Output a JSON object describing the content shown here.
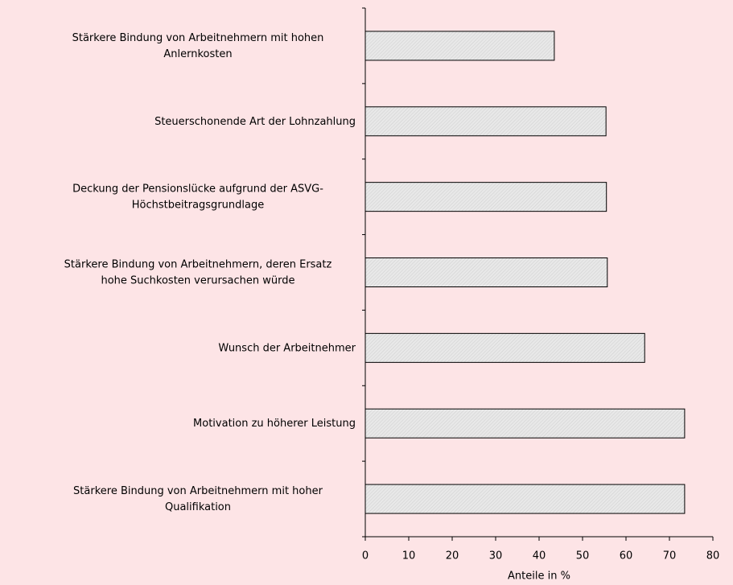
{
  "chart_data": {
    "type": "barh",
    "categories": [
      "Stärkere Bindung von Arbeitnehmern mit hohen\nAnlernkosten",
      "Steuerschonende Art der Lohnzahlung",
      "Deckung der Pensionslücke aufgrund der ASVG-\nHöchstbeitragsgrundlage",
      "Stärkere Bindung von Arbeitnehmern, deren Ersatz\nhohe Suchkosten verursachen würde",
      "Wunsch der Arbeitnehmer",
      "Motivation zu höherer Leistung",
      "Stärkere Bindung von Arbeitnehmern mit hoher\nQualifikation"
    ],
    "values": [
      43.5,
      55.4,
      55.5,
      55.7,
      64.3,
      73.5,
      73.5
    ],
    "color": "#e4e4e4",
    "xlim": [
      0,
      80
    ],
    "xticks": [
      0,
      10,
      20,
      30,
      40,
      50,
      60,
      70,
      80
    ],
    "xlabel": "Anteile in %"
  }
}
